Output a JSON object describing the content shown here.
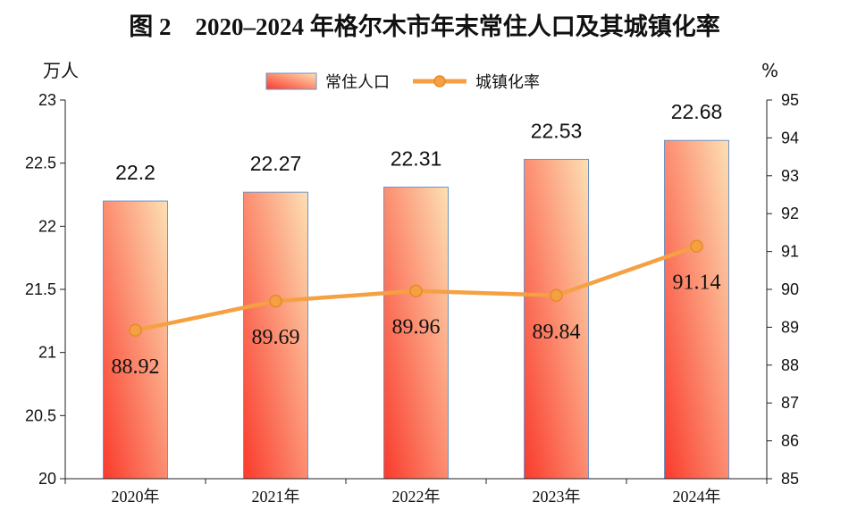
{
  "chart_data": {
    "type": "bar+line",
    "title": "图 2　2020–2024 年格尔木市年末常住人口及其城镇化率",
    "categories": [
      "2020年",
      "2021年",
      "2022年",
      "2023年",
      "2024年"
    ],
    "series": [
      {
        "name": "常住人口",
        "type": "bar",
        "axis": "left",
        "values": [
          22.2,
          22.27,
          22.31,
          22.53,
          22.68
        ],
        "labels": [
          "22.2",
          "22.27",
          "22.31",
          "22.53",
          "22.68"
        ]
      },
      {
        "name": "城镇化率",
        "type": "line",
        "axis": "right",
        "values": [
          88.92,
          89.69,
          89.96,
          89.84,
          91.14
        ],
        "labels": [
          "88.92",
          "89.69",
          "89.96",
          "89.84",
          "91.14"
        ]
      }
    ],
    "left_axis": {
      "unit": "万人",
      "ylim": [
        20,
        23
      ],
      "ticks": [
        "20",
        "20.5",
        "21",
        "21.5",
        "22",
        "22.5",
        "23"
      ]
    },
    "right_axis": {
      "unit": "%",
      "ylim": [
        85,
        95
      ],
      "ticks": [
        "85",
        "86",
        "87",
        "88",
        "89",
        "90",
        "91",
        "92",
        "93",
        "94",
        "95"
      ]
    },
    "legend_position": "top-center",
    "colors": {
      "bar_start": "#fa3a2c",
      "bar_end": "#fde0b4",
      "bar_edge": "#6f93c8",
      "line": "#f5a042",
      "marker_edge": "#e58a27"
    }
  }
}
